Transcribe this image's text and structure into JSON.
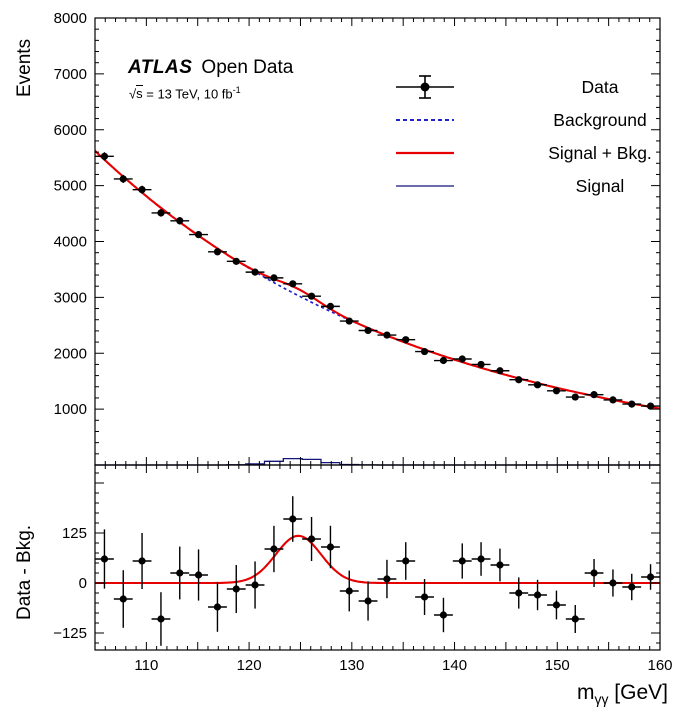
{
  "labels": {
    "experiment": "ATLAS",
    "dataset": "Open Data",
    "sqrt_sym": "√",
    "sqrt_arg": "s",
    "energy_lumi": " = 13 TeV, 10 fb",
    "lumi_exp": "-1",
    "y_top": "Events",
    "y_bottom": "Data - Bkg.",
    "x_base": "m",
    "x_sub": "γγ",
    "x_unit": " [GeV]"
  },
  "legend": {
    "items": [
      {
        "label": "Data",
        "style": "marker",
        "color": "#000000"
      },
      {
        "label": "Background",
        "style": "dashed",
        "color": "#2222cc"
      },
      {
        "label": "Signal + Bkg.",
        "style": "solid",
        "color": "#e60000"
      },
      {
        "label": "Signal",
        "style": "thin",
        "color": "#14147a"
      }
    ]
  },
  "chart_data": {
    "type": "scatter+line",
    "title": "",
    "xlabel": "m_gammagamma [GeV]",
    "x_range": [
      105,
      160
    ],
    "bin_width": 1.833,
    "panels": [
      {
        "name": "events",
        "ylabel": "Events",
        "y_range": [
          0,
          8000
        ],
        "y_tick_labels": [
          {
            "v": 1000,
            "label": "1000"
          },
          {
            "v": 2000,
            "label": "2000"
          },
          {
            "v": 3000,
            "label": "3000"
          },
          {
            "v": 4000,
            "label": "4000"
          },
          {
            "v": 5000,
            "label": "5000"
          },
          {
            "v": 6000,
            "label": "6000"
          },
          {
            "v": 7000,
            "label": "7000"
          },
          {
            "v": 8000,
            "label": "8000"
          }
        ]
      },
      {
        "name": "residuals",
        "ylabel": "Data - Bkg.",
        "y_range": [
          -167.5,
          295
        ],
        "y_tick_labels": [
          {
            "v": 125,
            "label": "125"
          },
          {
            "v": 0,
            "label": "0"
          },
          {
            "v": -125,
            "label": "−125"
          }
        ]
      }
    ],
    "x_tick_labels": [
      {
        "v": 110,
        "label": "110"
      },
      {
        "v": 120,
        "label": "120"
      },
      {
        "v": 130,
        "label": "130"
      },
      {
        "v": 140,
        "label": "140"
      },
      {
        "v": 150,
        "label": "150"
      },
      {
        "v": 160,
        "label": "160"
      }
    ],
    "x": [
      105.92,
      107.75,
      109.58,
      111.42,
      113.25,
      115.08,
      116.92,
      118.75,
      120.58,
      122.42,
      124.25,
      126.08,
      127.92,
      129.75,
      131.58,
      133.42,
      135.25,
      137.08,
      138.92,
      140.75,
      142.58,
      144.42,
      146.25,
      148.08,
      149.92,
      151.75,
      153.58,
      155.42,
      157.25,
      159.08
    ],
    "data_events": [
      5524,
      5120,
      4928,
      4512,
      4371,
      4124,
      3816,
      3645,
      3452,
      3349,
      3243,
      3021,
      2839,
      2576,
      2407,
      2325,
      2242,
      2030,
      1870,
      1897,
      1799,
      1687,
      1526,
      1435,
      1328,
      1216,
      1259,
      1165,
      1090,
      1054
    ],
    "data_errors": [
      74,
      72,
      70,
      67,
      66,
      64,
      62,
      60,
      59,
      58,
      57,
      55,
      53,
      51,
      49,
      48,
      47,
      45,
      43,
      44,
      42,
      41,
      39,
      38,
      36,
      35,
      35,
      34,
      33,
      32
    ],
    "residuals": [
      60,
      -40,
      55,
      -90,
      25,
      20,
      -60,
      -15,
      -5,
      85,
      160,
      110,
      90,
      -20,
      -45,
      10,
      55,
      -35,
      -80,
      55,
      60,
      45,
      -25,
      -30,
      -55,
      -90,
      25,
      0,
      -10,
      15
    ],
    "residual_errors": [
      74,
      72,
      70,
      67,
      66,
      64,
      62,
      60,
      59,
      58,
      57,
      55,
      53,
      51,
      49,
      48,
      47,
      45,
      43,
      44,
      42,
      41,
      39,
      38,
      36,
      35,
      35,
      34,
      33,
      32
    ],
    "background_model": {
      "type": "exponential",
      "a": 5623,
      "b": 0.03122,
      "x0": 105
    },
    "signal_model": {
      "type": "gaussian",
      "amplitude": 118,
      "mean": 124.8,
      "sigma": 2.2
    },
    "signal_histogram": {
      "edges": [
        117.83,
        119.67,
        121.5,
        123.33,
        125.17,
        127.0,
        128.83,
        130.67,
        132.5
      ],
      "values": [
        3,
        19,
        66,
        114,
        100,
        43,
        9,
        1
      ]
    },
    "colors": {
      "data": "#000000",
      "background": "#2222cc",
      "signal_plus_bkg": "#e60000",
      "signal": "#14147a"
    }
  }
}
